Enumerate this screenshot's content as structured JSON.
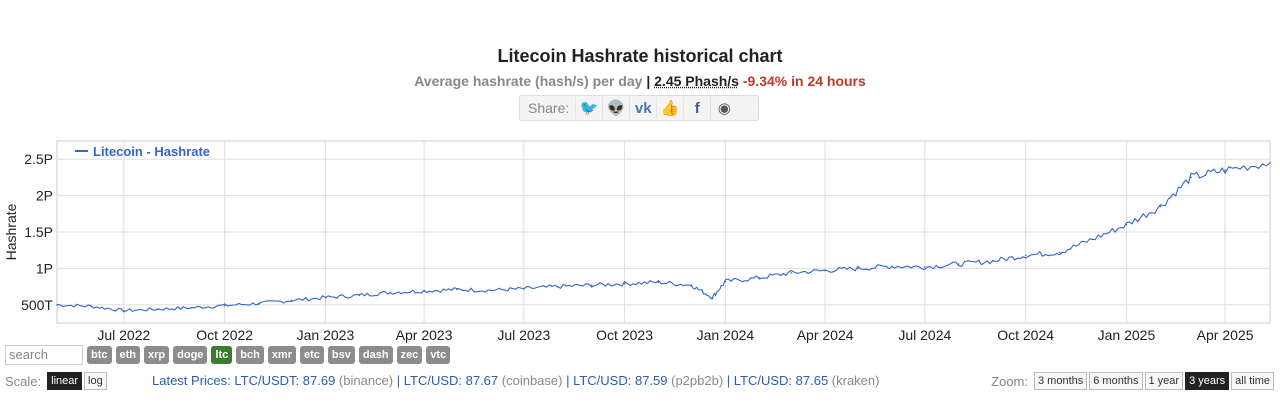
{
  "header": {
    "title": "Litecoin Hashrate historical chart",
    "subtitle_prefix": "Average hashrate (hash/s) per day",
    "separator": "|",
    "current_value": "2.45 Phash/s",
    "change": "-9.34% in 24 hours"
  },
  "share": {
    "label": "Share:",
    "icons": [
      "twitter-icon",
      "reddit-icon",
      "vk-icon",
      "like-icon",
      "facebook-icon",
      "weibo-icon"
    ],
    "glyphs": [
      "🐦",
      "👽",
      "vk",
      "👍",
      "f",
      "◉"
    ],
    "colors": [
      "#1da1f2",
      "#888888",
      "#4a76a8",
      "#3b5998",
      "#3b5998",
      "#555555"
    ]
  },
  "chart_data": {
    "type": "line",
    "title": "Litecoin Hashrate historical chart",
    "ylabel": "Hashrate",
    "xlabel": "",
    "legend": "top-left",
    "grid": true,
    "color": "#3366cc",
    "x_ticks": [
      "Jul 2022",
      "Oct 2022",
      "Jan 2023",
      "Apr 2023",
      "Jul 2023",
      "Oct 2023",
      "Jan 2024",
      "Apr 2024",
      "Jul 2024",
      "Oct 2024",
      "Jan 2025",
      "Apr 2025"
    ],
    "y_ticks": [
      "500T",
      "1P",
      "1.5P",
      "2P",
      "2.5P"
    ],
    "y_tick_values": [
      0.5,
      1.0,
      1.5,
      2.0,
      2.5
    ],
    "ylim": [
      0.25,
      2.75
    ],
    "xlim": [
      "2022-05-01",
      "2025-05-12"
    ],
    "series": [
      {
        "name": "Litecoin - Hashrate",
        "unit": "PH/s",
        "x": [
          "2022-05-01",
          "2022-06-01",
          "2022-07-01",
          "2022-08-01",
          "2022-09-01",
          "2022-10-01",
          "2022-11-01",
          "2022-12-01",
          "2023-01-01",
          "2023-02-01",
          "2023-03-01",
          "2023-04-01",
          "2023-05-01",
          "2023-06-01",
          "2023-07-01",
          "2023-08-01",
          "2023-09-01",
          "2023-10-01",
          "2023-11-01",
          "2023-12-01",
          "2023-12-20",
          "2024-01-01",
          "2024-02-01",
          "2024-03-01",
          "2024-04-01",
          "2024-05-01",
          "2024-06-01",
          "2024-07-01",
          "2024-08-01",
          "2024-09-01",
          "2024-10-01",
          "2024-11-01",
          "2024-12-01",
          "2025-01-01",
          "2025-02-01",
          "2025-03-01",
          "2025-04-01",
          "2025-05-12"
        ],
        "y": [
          0.5,
          0.48,
          0.42,
          0.44,
          0.46,
          0.49,
          0.52,
          0.56,
          0.6,
          0.63,
          0.67,
          0.69,
          0.71,
          0.7,
          0.72,
          0.75,
          0.77,
          0.79,
          0.81,
          0.77,
          0.6,
          0.82,
          0.87,
          0.94,
          0.97,
          1.0,
          1.03,
          1.02,
          1.06,
          1.1,
          1.18,
          1.22,
          1.4,
          1.6,
          1.85,
          2.25,
          2.35,
          2.45
        ]
      }
    ]
  },
  "coins": {
    "search_placeholder": "search",
    "items": [
      "btc",
      "eth",
      "xrp",
      "doge",
      "ltc",
      "bch",
      "xmr",
      "etc",
      "bsv",
      "dash",
      "zec",
      "vtc"
    ],
    "active": "ltc"
  },
  "scale": {
    "label": "Scale:",
    "options": [
      "linear",
      "log"
    ],
    "active": "linear"
  },
  "prices": {
    "label": "Latest Prices:",
    "items": [
      {
        "pair": "LTC/USDT: 87.69",
        "exchange": "(binance)"
      },
      {
        "pair": "LTC/USD: 87.67",
        "exchange": "(coinbase)"
      },
      {
        "pair": "LTC/USD: 87.59",
        "exchange": "(p2pb2b)"
      },
      {
        "pair": "LTC/USD: 87.65",
        "exchange": "(kraken)"
      }
    ],
    "separator": "|"
  },
  "zoom": {
    "label": "Zoom:",
    "options": [
      "3 months",
      "6 months",
      "1 year",
      "3 years",
      "all time"
    ],
    "active": "3 years"
  }
}
